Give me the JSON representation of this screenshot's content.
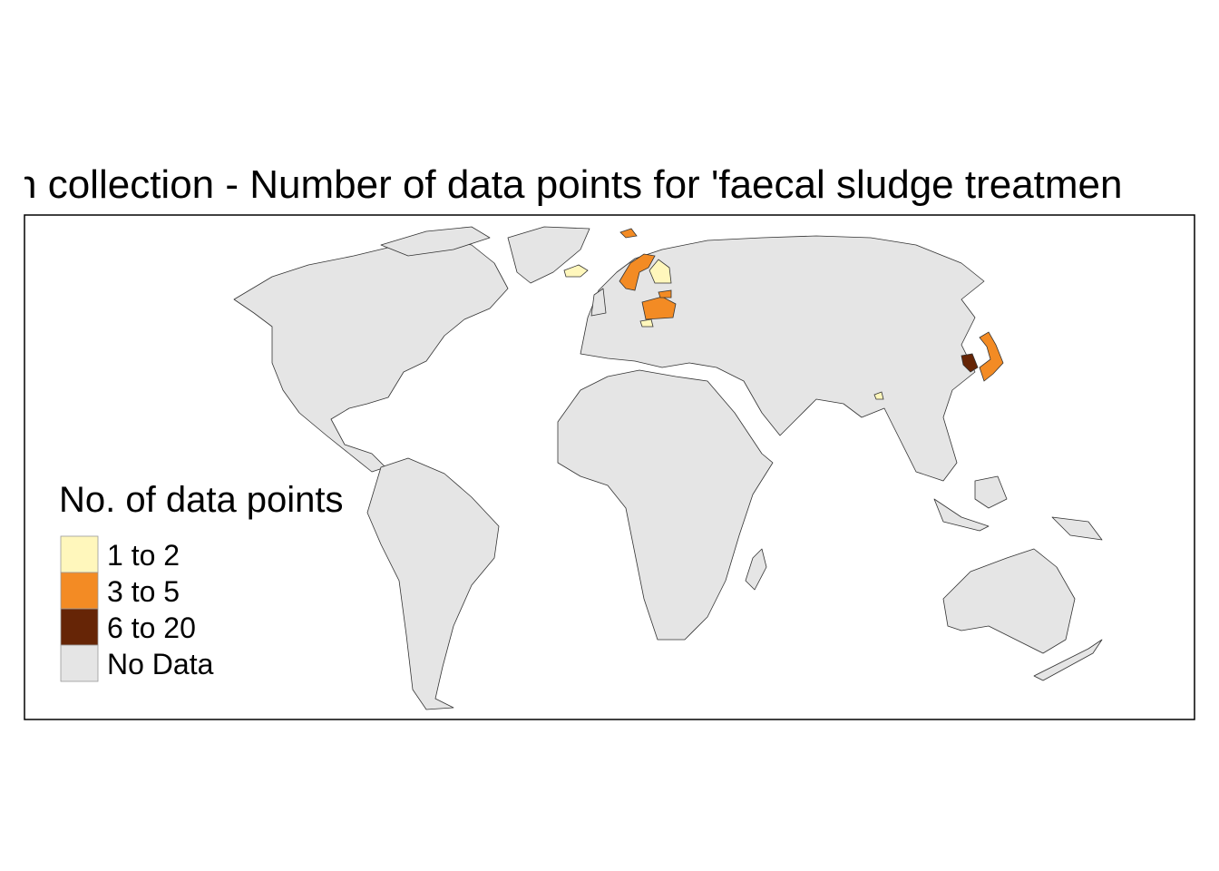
{
  "map": {
    "title": "n collection - Number of data points for 'faecal sludge treatmen",
    "legend": {
      "title": "No. of data points",
      "items": [
        {
          "label": "1 to 2",
          "color": "#fff7bc"
        },
        {
          "label": "3 to 5",
          "color": "#f38b24"
        },
        {
          "label": "6 to 20",
          "color": "#662506"
        },
        {
          "label": "No Data",
          "color": "#e5e5e5"
        }
      ]
    }
  }
}
